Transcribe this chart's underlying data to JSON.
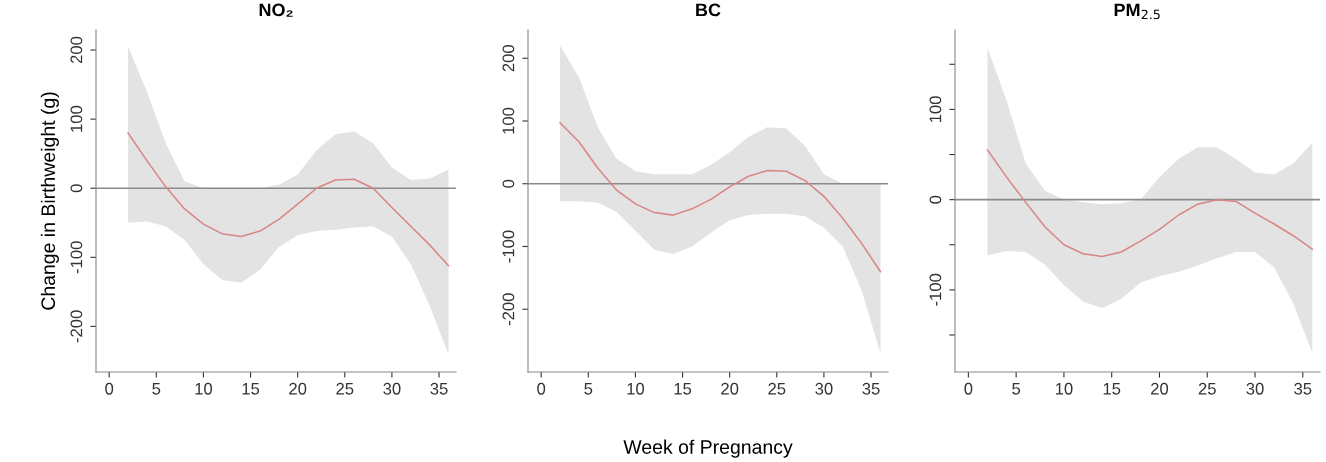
{
  "chart_data": [
    {
      "type": "line",
      "title": "NO₂",
      "ylabel": "Change in Birthweight (g)",
      "xlim": [
        -1.4,
        36.8
      ],
      "xticks": [
        0,
        5,
        10,
        15,
        20,
        25,
        30,
        35
      ],
      "ylim": [
        -266,
        229
      ],
      "yticks": [
        -200,
        -100,
        0,
        100,
        200
      ],
      "grid": false,
      "marker": "none",
      "line_style": "solid",
      "ref_lines": [
        {
          "axis": "y",
          "value": 0,
          "color": "#8a8a8a"
        }
      ],
      "series": [
        {
          "color": "#d98585",
          "x": [
            2,
            4,
            6,
            8,
            10,
            12,
            14,
            16,
            18,
            20,
            22,
            24,
            26,
            28,
            30,
            32,
            34,
            36
          ],
          "values": [
            80,
            40,
            2,
            -30,
            -52,
            -66,
            -70,
            -62,
            -45,
            -23,
            0,
            12,
            13,
            0,
            -28,
            -55,
            -82,
            -112
          ],
          "upper": [
            205,
            140,
            65,
            10,
            0,
            0,
            0,
            0,
            5,
            20,
            55,
            78,
            82,
            65,
            30,
            12,
            14,
            27
          ],
          "lower": [
            -50,
            -48,
            -55,
            -75,
            -110,
            -133,
            -137,
            -118,
            -85,
            -68,
            -62,
            -60,
            -57,
            -55,
            -70,
            -110,
            -170,
            -240
          ]
        }
      ]
    },
    {
      "type": "line",
      "title": "BC",
      "xlabel": "Week of Pregnancy",
      "xlim": [
        -1.4,
        36.8
      ],
      "xticks": [
        0,
        5,
        10,
        15,
        20,
        25,
        30,
        35
      ],
      "ylim": [
        -300,
        245
      ],
      "yticks": [
        -200,
        -100,
        0,
        100,
        200
      ],
      "grid": false,
      "marker": "none",
      "line_style": "solid",
      "ref_lines": [
        {
          "axis": "y",
          "value": 0,
          "color": "#8a8a8a"
        }
      ],
      "series": [
        {
          "color": "#d98585",
          "x": [
            2,
            4,
            6,
            8,
            10,
            12,
            14,
            16,
            18,
            20,
            22,
            24,
            26,
            28,
            30,
            32,
            34,
            36
          ],
          "values": [
            97,
            67,
            25,
            -10,
            -32,
            -46,
            -50,
            -40,
            -25,
            -5,
            12,
            21,
            20,
            5,
            -20,
            -55,
            -95,
            -140
          ],
          "upper": [
            220,
            170,
            90,
            40,
            20,
            15,
            15,
            15,
            30,
            50,
            75,
            90,
            88,
            60,
            15,
            0,
            0,
            0
          ],
          "lower": [
            -28,
            -28,
            -30,
            -45,
            -75,
            -105,
            -112,
            -100,
            -78,
            -58,
            -50,
            -48,
            -48,
            -52,
            -70,
            -100,
            -170,
            -270
          ]
        }
      ]
    },
    {
      "type": "line",
      "title": "PM$_{2.5}$",
      "xlim": [
        -1.4,
        36.8
      ],
      "xticks": [
        0,
        5,
        10,
        15,
        20,
        25,
        30,
        35
      ],
      "ylim": [
        -191,
        188
      ],
      "yticks": [
        {
          "value": -150,
          "label": null
        },
        -100,
        {
          "value": -50,
          "label": null
        },
        0,
        {
          "value": 50,
          "label": null
        },
        100,
        {
          "value": 150,
          "label": null
        }
      ],
      "grid": false,
      "marker": "none",
      "line_style": "solid",
      "ref_lines": [
        {
          "axis": "y",
          "value": 0,
          "color": "#8a8a8a"
        }
      ],
      "series": [
        {
          "color": "#d98585",
          "x": [
            2,
            4,
            6,
            8,
            10,
            12,
            14,
            16,
            18,
            20,
            22,
            24,
            26,
            28,
            30,
            32,
            34,
            36
          ],
          "values": [
            55,
            25,
            -3,
            -30,
            -50,
            -60,
            -63,
            -58,
            -46,
            -33,
            -17,
            -5,
            0,
            -2,
            -15,
            -27,
            -40,
            -55
          ],
          "upper": [
            168,
            110,
            40,
            10,
            0,
            -3,
            -5,
            -4,
            0,
            25,
            45,
            58,
            58,
            45,
            30,
            28,
            40,
            63
          ],
          "lower": [
            -62,
            -57,
            -58,
            -72,
            -95,
            -113,
            -120,
            -110,
            -92,
            -85,
            -80,
            -73,
            -65,
            -58,
            -58,
            -75,
            -115,
            -170
          ]
        }
      ]
    }
  ]
}
